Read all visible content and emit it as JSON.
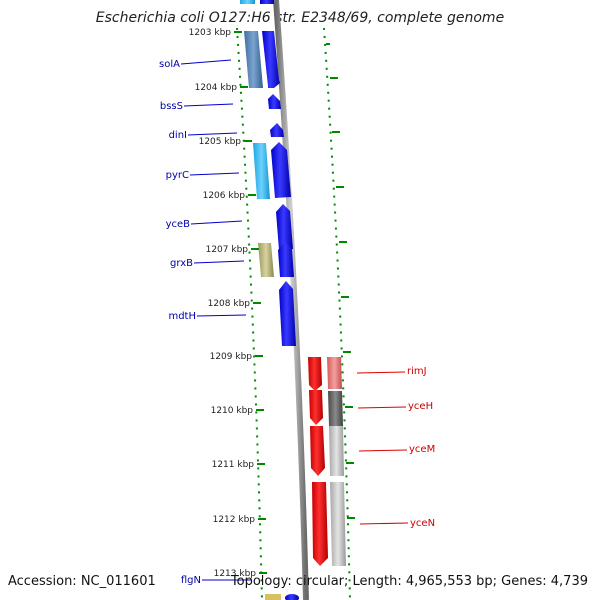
{
  "title": "Escherichia coli O127:H6 str. E2348/69, complete genome",
  "footer": {
    "accession": "Accession: NC_011601",
    "summary": "Topology: circular; Length: 4,965,553 bp; Genes: 4,739"
  },
  "ruler_labels": [
    "1203 kbp",
    "1204 kbp",
    "1205 kbp",
    "1206 kbp",
    "1207 kbp",
    "1208 kbp",
    "1209 kbp",
    "1210 kbp",
    "1211 kbp",
    "1212 kbp",
    "1213 kbp"
  ],
  "gene_labels_left": [
    "solA",
    "bssS",
    "dinI",
    "pyrC",
    "yceB",
    "grxB",
    "mdtH",
    "flgN"
  ],
  "gene_labels_right": [
    "rimJ",
    "yceH",
    "yceM",
    "yceN"
  ],
  "colors": {
    "forward_strand": "#0000ee",
    "reverse_strand": "#ee0000",
    "label_line_left": "#0000cc",
    "label_line_right": "#dd0000",
    "ruler_tick": "#008800",
    "backbone": "#888888"
  }
}
